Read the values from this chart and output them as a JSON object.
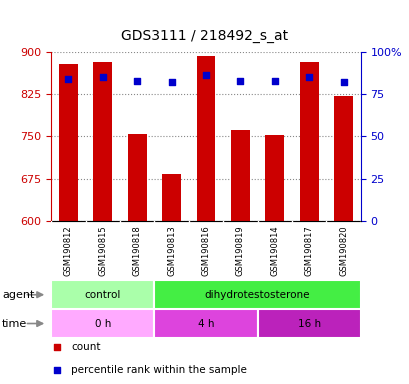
{
  "title": "GDS3111 / 218492_s_at",
  "samples": [
    "GSM190812",
    "GSM190815",
    "GSM190818",
    "GSM190813",
    "GSM190816",
    "GSM190819",
    "GSM190814",
    "GSM190817",
    "GSM190820"
  ],
  "bar_values": [
    878,
    882,
    755,
    683,
    893,
    762,
    752,
    882,
    821
  ],
  "percentile_values": [
    84,
    85,
    83,
    82,
    86,
    83,
    83,
    85,
    82
  ],
  "ylim_left": [
    600,
    900
  ],
  "ylim_right": [
    0,
    100
  ],
  "yticks_left": [
    600,
    675,
    750,
    825,
    900
  ],
  "yticks_right": [
    0,
    25,
    50,
    75,
    100
  ],
  "ytick_labels_right": [
    "0",
    "25",
    "50",
    "75",
    "100%"
  ],
  "bar_color": "#cc0000",
  "dot_color": "#0000cc",
  "agent_groups": [
    {
      "label": "control",
      "start": 0,
      "end": 3,
      "color": "#aaffaa"
    },
    {
      "label": "dihydrotestosterone",
      "start": 3,
      "end": 9,
      "color": "#44ee44"
    }
  ],
  "time_groups": [
    {
      "label": "0 h",
      "start": 0,
      "end": 3,
      "color": "#ffaaff"
    },
    {
      "label": "4 h",
      "start": 3,
      "end": 6,
      "color": "#dd44dd"
    },
    {
      "label": "16 h",
      "start": 6,
      "end": 9,
      "color": "#bb22bb"
    }
  ],
  "legend_items": [
    {
      "label": "count",
      "color": "#cc0000"
    },
    {
      "label": "percentile rank within the sample",
      "color": "#0000cc"
    }
  ],
  "xlabels_bg": "#cccccc",
  "background_color": "#ffffff"
}
